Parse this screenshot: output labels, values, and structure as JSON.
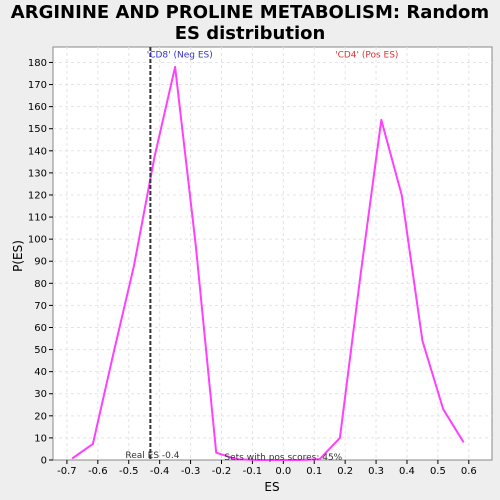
{
  "chart_data": {
    "type": "line",
    "title_line1": "ARGININE AND PROLINE METABOLISM: Random",
    "title_line2": "ES distribution",
    "xlabel": "ES",
    "ylabel": "P(ES)",
    "xlim": [
      -0.745,
      0.675
    ],
    "ylim": [
      0,
      187
    ],
    "xticks": [
      -0.7,
      -0.6,
      -0.5,
      -0.4,
      -0.3,
      -0.2,
      -0.1,
      0.0,
      0.1,
      0.2,
      0.3,
      0.4,
      0.5,
      0.6
    ],
    "xtick_labels": [
      "-0.7",
      "-0.6",
      "-0.5",
      "-0.4",
      "-0.3",
      "-0.2",
      "-0.1",
      "0.0",
      "0.1",
      "0.2",
      "0.3",
      "0.4",
      "0.5",
      "0.6"
    ],
    "yticks": [
      0,
      10,
      20,
      30,
      40,
      50,
      60,
      70,
      80,
      90,
      100,
      110,
      120,
      130,
      140,
      150,
      160,
      170,
      180
    ],
    "grid": true,
    "series": [
      {
        "color": "#ff40ff",
        "x": [
          -0.683,
          -0.616,
          -0.55,
          -0.483,
          -0.417,
          -0.35,
          -0.283,
          -0.217,
          -0.15,
          -0.083,
          -0.017,
          0.05,
          0.117,
          0.183,
          0.25,
          0.317,
          0.383,
          0.45,
          0.517,
          0.583
        ],
        "y": [
          0.7,
          7.3,
          48,
          88,
          137,
          178,
          97,
          3.3,
          0.3,
          0,
          0,
          0,
          0.3,
          10,
          84,
          154,
          120,
          54,
          23,
          8
        ]
      }
    ],
    "vline": {
      "x": -0.43,
      "color": "#333333",
      "label": "Real ES -0.4"
    },
    "annotations": [
      {
        "text": "'CD8' (Neg ES)",
        "color": "#3333cc",
        "x": -0.335,
        "y": 183.5
      },
      {
        "text": "'CD4' (Pos ES)",
        "color": "#dd3333",
        "x": 0.27,
        "y": 183.5
      },
      {
        "text": "Sets with pos scores: 45%",
        "color": "#333333",
        "x": 0.0,
        "y": 1.3
      }
    ]
  }
}
